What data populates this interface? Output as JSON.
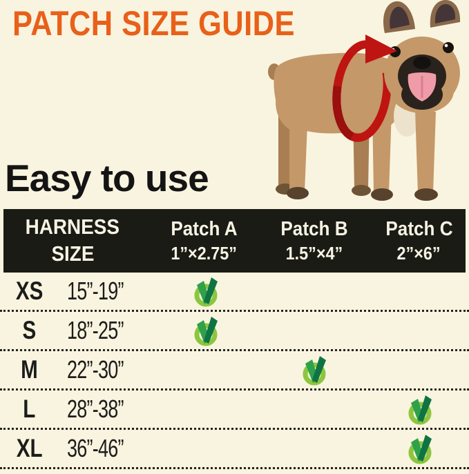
{
  "title": {
    "text": "PATCH SIZE GUIDE"
  },
  "subtitle": "Easy to use",
  "illustration": {
    "dog": "french-bulldog-standing",
    "arrow": "girth-measure-arrow"
  },
  "table": {
    "header": {
      "col1_line1": "HARNESS",
      "col1_line2": "SIZE",
      "columns": [
        {
          "name": "Patch A",
          "size": "1”×2.75”"
        },
        {
          "name": "Patch B",
          "size": "1.5”×4”"
        },
        {
          "name": "Patch C",
          "size": "2”×6”"
        }
      ]
    },
    "rows": [
      {
        "size": "XS",
        "range": "15”-19”",
        "patch": "A"
      },
      {
        "size": "S",
        "range": "18”-25”",
        "patch": "A"
      },
      {
        "size": "M",
        "range": "22”-30”",
        "patch": "B"
      },
      {
        "size": "L",
        "range": "28”-38”",
        "patch": "C"
      },
      {
        "size": "XL",
        "range": "36”-46”",
        "patch": "C"
      }
    ]
  },
  "chart_data": {
    "type": "table",
    "title": "PATCH SIZE GUIDE",
    "columns": [
      "HARNESS SIZE",
      "Patch A 1”×2.75”",
      "Patch B 1.5”×4”",
      "Patch C 2”×6”"
    ],
    "rows": [
      {
        "harness_size": "XS",
        "girth": "15”-19”",
        "patch_a": true,
        "patch_b": false,
        "patch_c": false
      },
      {
        "harness_size": "S",
        "girth": "18”-25”",
        "patch_a": true,
        "patch_b": false,
        "patch_c": false
      },
      {
        "harness_size": "M",
        "girth": "22”-30”",
        "patch_a": false,
        "patch_b": true,
        "patch_c": false
      },
      {
        "harness_size": "L",
        "girth": "28”-38”",
        "patch_a": false,
        "patch_b": false,
        "patch_c": true
      },
      {
        "harness_size": "XL",
        "girth": "36”-46”",
        "patch_a": false,
        "patch_b": false,
        "patch_c": true
      }
    ]
  },
  "colors": {
    "background": "#F9F4DF",
    "accent_orange": "#E8601A",
    "header_bg": "#1B1B15",
    "header_text": "#F7F3E4",
    "text": "#1C1C1C",
    "dot_color": "#23231E",
    "check_ring": "#8CC63E",
    "check_left": "#2FA14B",
    "check_right": "#0F7443",
    "arrow_red": "#BE1412",
    "dog_coat": "#C49868"
  }
}
